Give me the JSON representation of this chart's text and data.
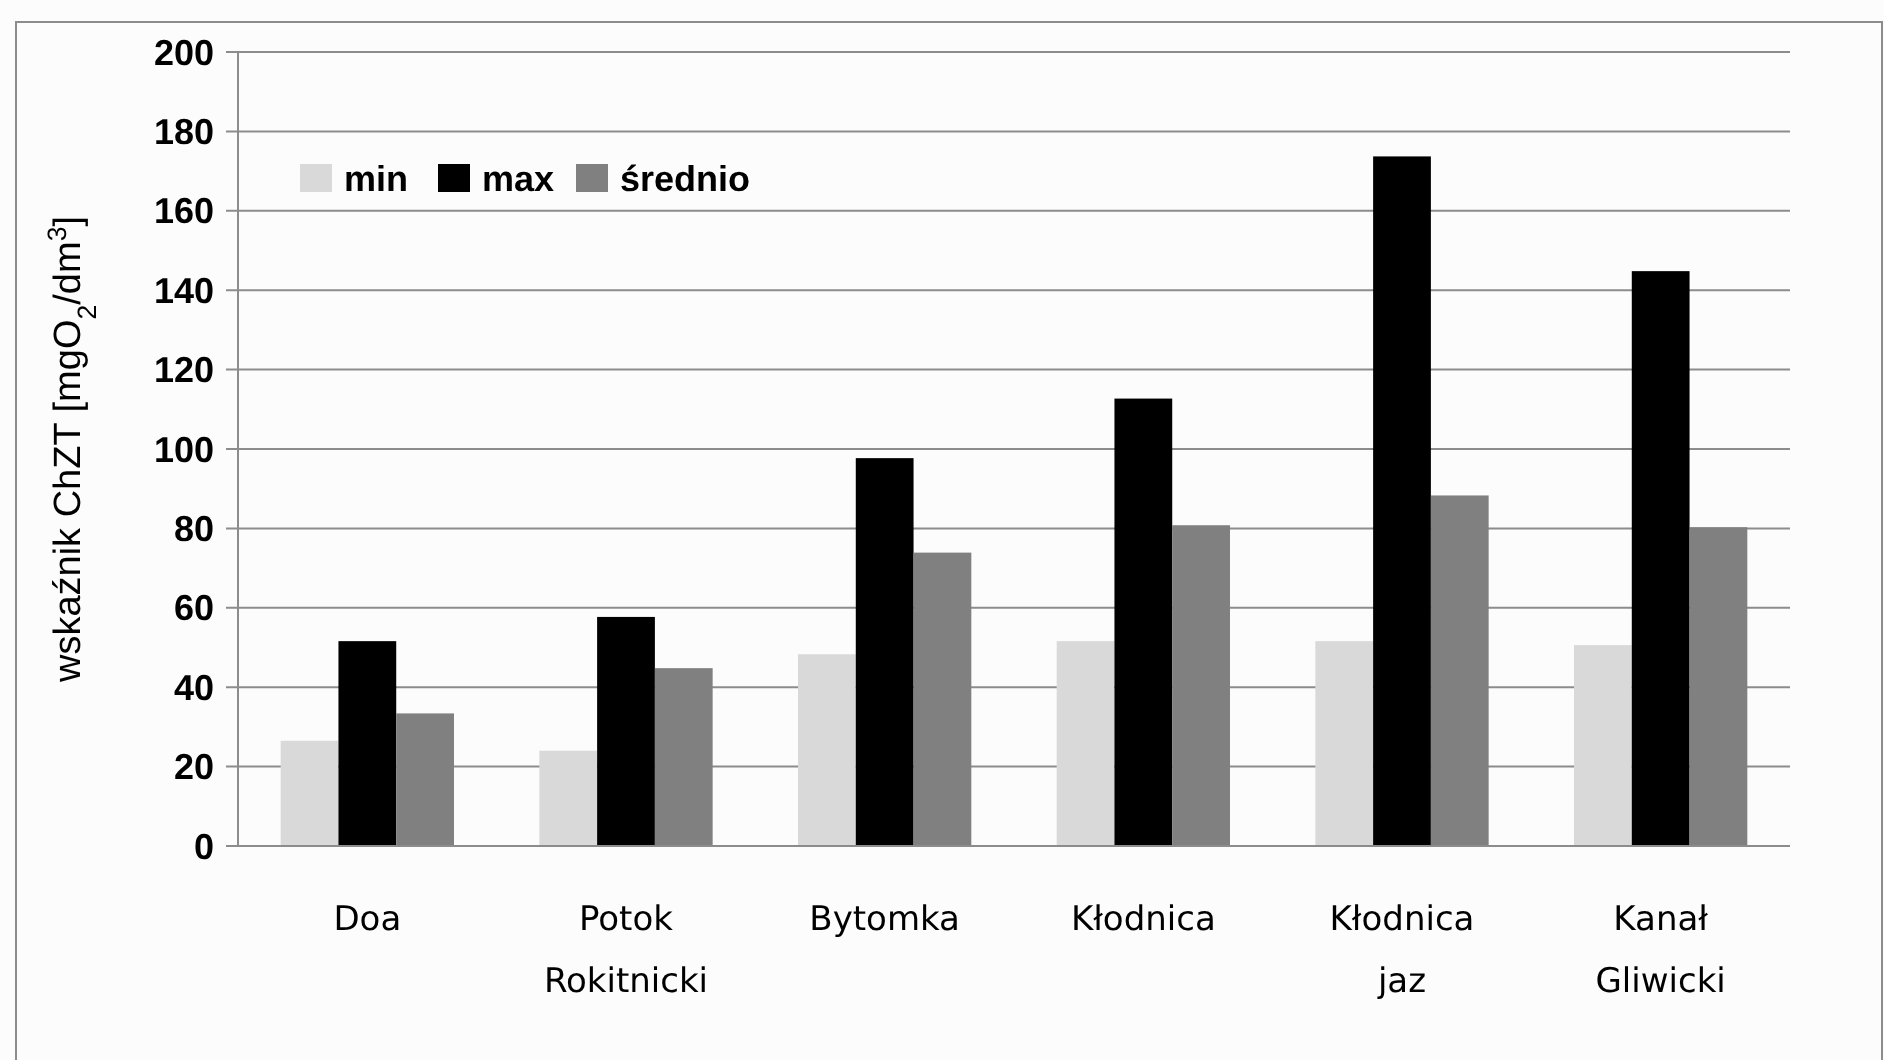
{
  "chart_data": {
    "type": "bar",
    "ylabel": "wskaźnik ChZT [mgO$_{2}$/dm$^{3}$]",
    "categories": [
      "Doa",
      "Potok Rokitnicki",
      "Bytomka",
      "Kłodnica",
      "Kłodnica jaz",
      "Kanał Gliwicki"
    ],
    "series": [
      {
        "name": "min",
        "color": "#d9d9d9",
        "values": [
          26.5,
          24,
          48.3,
          51.6,
          51.6,
          50.6
        ]
      },
      {
        "name": "max",
        "color": "#000000",
        "values": [
          51.6,
          57.7,
          97.7,
          112.7,
          173.7,
          144.8
        ]
      },
      {
        "name": "średnio",
        "color": "#808080",
        "values": [
          33.4,
          44.8,
          73.9,
          80.8,
          88.3,
          80.3
        ]
      }
    ],
    "ylim": [
      0,
      200
    ],
    "yticks": [
      0,
      20,
      40,
      60,
      80,
      100,
      120,
      140,
      160,
      180,
      200
    ],
    "grid": "y",
    "legend": "top left"
  }
}
